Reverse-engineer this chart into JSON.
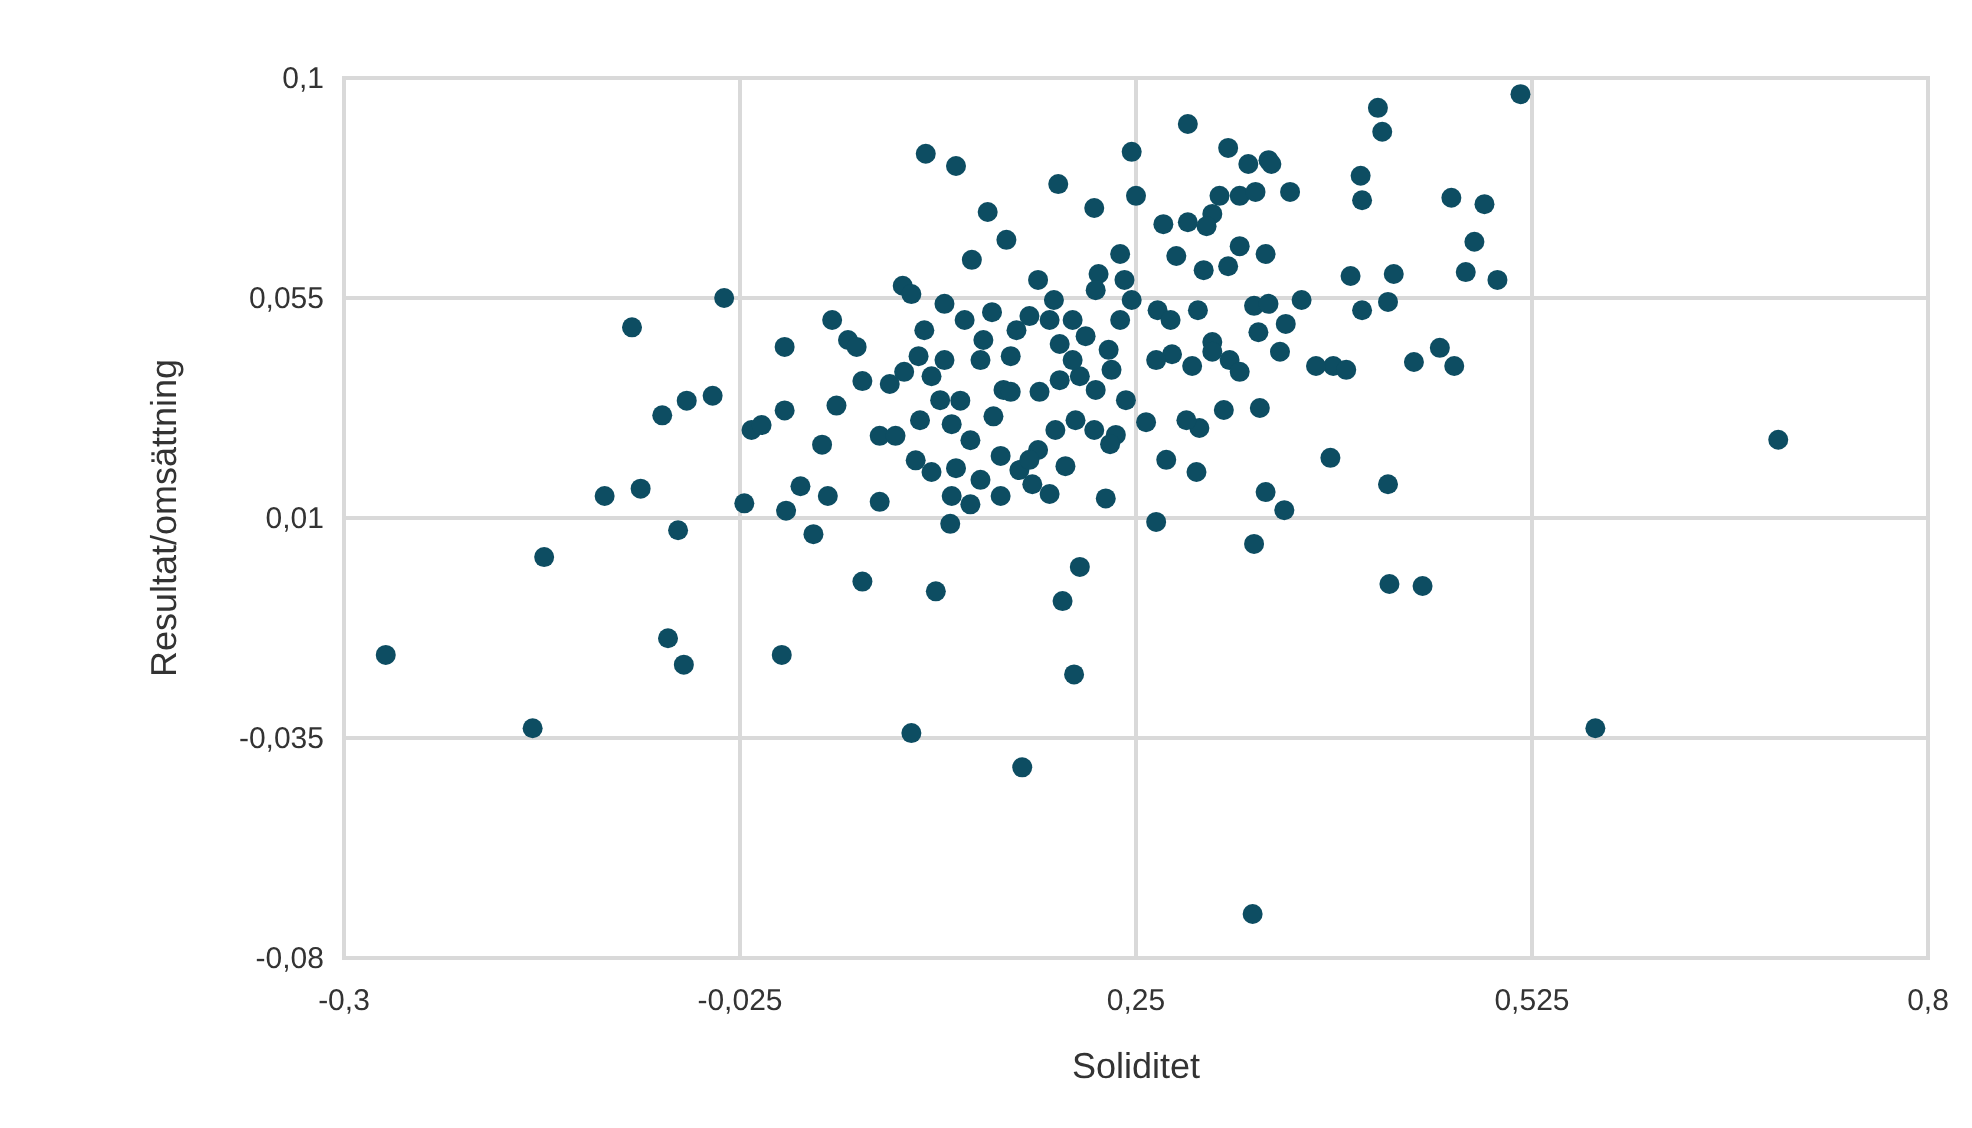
{
  "chart_data": {
    "type": "scatter",
    "xlabel": "Soliditet",
    "ylabel": "Resultat/omsättning",
    "xlim": [
      -0.3,
      0.8
    ],
    "ylim": [
      -0.08,
      0.1
    ],
    "xticks": [
      {
        "value": -0.3,
        "label": "-0,3"
      },
      {
        "value": -0.025,
        "label": "-0,025"
      },
      {
        "value": 0.25,
        "label": "0,25"
      },
      {
        "value": 0.525,
        "label": "0,525"
      },
      {
        "value": 0.8,
        "label": "0,8"
      }
    ],
    "yticks": [
      {
        "value": -0.08,
        "label": "-0,08"
      },
      {
        "value": -0.035,
        "label": "-0,035"
      },
      {
        "value": 0.01,
        "label": "0,01"
      },
      {
        "value": 0.055,
        "label": "0,055"
      },
      {
        "value": 0.1,
        "label": "0,1"
      }
    ],
    "grid": true,
    "marker": "circle",
    "series": [
      {
        "color": "#0d4d62",
        "x": [
          -0.271,
          -0.169,
          -0.161,
          -0.119,
          -0.094,
          -0.1,
          -0.079,
          -0.062,
          -0.044,
          -0.068,
          -0.075,
          -0.064,
          -0.036,
          -0.017,
          -0.01,
          0.006,
          0.006,
          0.004,
          -0.022,
          0.017,
          0.007,
          0.026,
          0.036,
          0.06,
          0.039,
          0.032,
          0.042,
          0.05,
          0.056,
          0.06,
          0.072,
          0.072,
          0.088,
          0.094,
          0.094,
          0.104,
          0.125,
          0.111,
          0.147,
          0.136,
          0.117,
          0.128,
          0.142,
          0.16,
          0.171,
          0.196,
          0.193,
          0.221,
          0.247,
          0.25,
          0.224,
          0.239,
          0.207,
          0.199,
          0.211,
          0.19,
          0.201,
          0.229,
          0.236,
          0.264,
          0.271,
          0.286,
          0.314,
          0.328,
          0.342,
          0.344,
          0.308,
          0.322,
          0.303,
          0.269,
          0.286,
          0.299,
          0.333,
          0.357,
          0.322,
          0.278,
          0.314,
          0.297,
          0.34,
          0.332,
          0.342,
          0.365,
          0.332,
          0.331,
          0.34,
          0.353,
          0.418,
          0.421,
          0.406,
          0.407,
          0.469,
          0.492,
          0.485,
          0.479,
          0.501,
          0.517,
          0.399,
          0.429,
          0.407,
          0.425,
          0.461,
          0.471,
          0.443,
          0.387,
          0.396,
          0.385,
          0.425,
          0.426,
          0.449,
          0.569,
          0.696,
          0.265,
          0.274,
          0.293,
          0.303,
          0.303,
          0.335,
          0.354,
          0.375,
          0.35,
          0.275,
          0.264,
          0.289,
          0.294,
          0.311,
          0.285,
          0.336,
          0.257,
          0.292,
          0.315,
          0.322,
          0.079,
          0.089,
          0.099,
          0.108,
          0.114,
          0.122,
          0.135,
          0.151,
          0.158,
          0.163,
          0.167,
          0.176,
          0.182,
          0.19,
          0.197,
          0.206,
          0.215,
          0.222,
          0.211,
          0.222,
          0.233,
          0.243,
          0.208,
          0.221,
          0.232,
          0.194,
          0.182,
          0.169,
          0.156,
          0.142,
          0.125,
          0.108,
          0.097,
          0.083,
          0.1,
          0.144,
          0.15,
          0.131,
          0.117,
          0.103,
          0.122,
          0.135,
          0.121,
          0.156,
          0.178,
          0.176,
          0.163,
          0.183,
          0.197,
          0.206,
          0.231,
          0.239,
          0.242,
          0.247
        ],
        "values": [
          -0.018,
          -0.033,
          0.002,
          0.0145,
          0.016,
          0.049,
          0.031,
          0.034,
          0.035,
          0.0075,
          -0.0146,
          -0.02,
          0.055,
          0.028,
          0.029,
          0.032,
          0.045,
          -0.018,
          0.013,
          0.0165,
          0.0115,
          0.0067,
          0.0145,
          -0.003,
          0.0505,
          0.025,
          0.033,
          0.0464,
          0.045,
          0.038,
          0.0133,
          0.0268,
          0.0575,
          0.0558,
          -0.034,
          0.0845,
          0.082,
          -0.005,
          0.0726,
          0.0628,
          0.0423,
          0.034,
          0.0423,
          0.0669,
          -0.041,
          0.0783,
          0.0546,
          0.0734,
          0.0849,
          0.0759,
          0.0599,
          0.064,
          -0.022,
          -0.007,
          0.0,
          0.0149,
          0.0206,
          0.014,
          0.027,
          0.0092,
          0.0219,
          0.0906,
          0.0857,
          0.0824,
          0.0832,
          0.0824,
          0.0759,
          0.0759,
          0.0722,
          0.0701,
          0.0705,
          0.0697,
          0.0767,
          0.0767,
          0.0656,
          0.0636,
          0.0615,
          0.0607,
          0.064,
          0.0534,
          0.0538,
          0.0546,
          0.0047,
          -0.071,
          0.0153,
          0.0116,
          0.0939,
          0.089,
          0.08,
          0.075,
          0.0755,
          0.0742,
          0.0665,
          0.0603,
          0.0587,
          0.0967,
          0.0595,
          0.0599,
          0.0525,
          0.0542,
          0.0448,
          0.0411,
          0.0419,
          0.0411,
          0.0403,
          0.0223,
          0.0169,
          -0.0035,
          -0.0039,
          -0.033,
          0.026,
          0.0525,
          0.0505,
          0.0525,
          0.046,
          0.044,
          0.048,
          0.0497,
          0.0411,
          0.044,
          0.0435,
          0.0423,
          0.0411,
          0.0284,
          0.0321,
          0.03,
          0.0325,
          0.0296,
          0.0194,
          0.0423,
          0.0399,
          0.0374,
          0.0399,
          0.0431,
          0.039,
          0.0341,
          0.0292,
          0.0259,
          0.0308,
          0.0362,
          0.0431,
          0.0484,
          0.0513,
          0.0587,
          0.0505,
          0.0456,
          0.0505,
          0.0472,
          0.0566,
          0.039,
          0.0362,
          0.0403,
          0.0341,
          0.03,
          0.028,
          0.0251,
          0.028,
          0.0239,
          0.0198,
          0.0227,
          0.0178,
          0.0202,
          0.0194,
          0.0218,
          0.0268,
          0.03,
          0.0464,
          0.0521,
          0.0505,
          0.0538,
          0.0484,
          0.0145,
          0.0128,
          0.0088,
          0.0145,
          0.0169,
          0.0219,
          0.0358,
          0.0358,
          0.0382,
          0.0423,
          0.0444,
          0.0505,
          0.0587,
          0.0546
        ]
      }
    ]
  }
}
